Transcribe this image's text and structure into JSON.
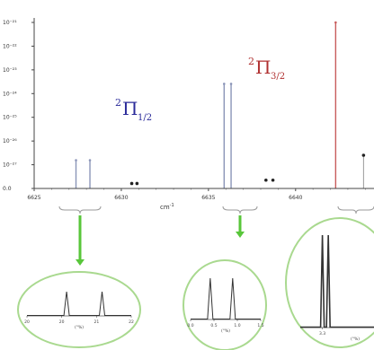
{
  "chart_data": {
    "type": "stem",
    "x_unit_label": "cm",
    "x_unit_superscript": "-1",
    "xlim": [
      6625,
      6644.5
    ],
    "x_ticks": [
      6625,
      6630,
      6635,
      6640
    ],
    "y_scale": "log",
    "y_tick_labels": [
      "10⁻²¹",
      "10⁻²²",
      "10⁻²³",
      "10⁻²⁴",
      "10⁻²⁵",
      "10⁻²⁶",
      "10⁻²⁷",
      "0.0"
    ],
    "series": [
      {
        "color": "#8b95b8",
        "points": [
          {
            "x": 6627.4,
            "y_level": 0.17
          },
          {
            "x": 6628.2,
            "y_level": 0.17
          },
          {
            "x": 6635.9,
            "y_level": 0.63
          },
          {
            "x": 6636.3,
            "y_level": 0.63
          }
        ]
      },
      {
        "color": "#c85c5c",
        "points": [
          {
            "x": 6642.3,
            "y_level": 1.0
          }
        ]
      },
      {
        "color": "#222222",
        "points": [
          {
            "x": 6630.6,
            "y_level": 0.03
          },
          {
            "x": 6630.9,
            "y_level": 0.03
          },
          {
            "x": 6638.3,
            "y_level": 0.05
          },
          {
            "x": 6638.7,
            "y_level": 0.05
          },
          {
            "x": 6643.9,
            "y_level": 0.2
          }
        ]
      }
    ],
    "annotations": [
      {
        "symbol": "Π",
        "superscript": "2",
        "subscript": "1/2",
        "color": "#2b2b9a",
        "near_x": 6632.0
      },
      {
        "symbol": "Π",
        "superscript": "2",
        "subscript": "3/2",
        "color": "#b03030",
        "near_x": 6639.0
      }
    ],
    "insets": [
      {
        "name": "inset-1",
        "tick_labels": [
          "20",
          "20",
          "21",
          "22"
        ],
        "xlabel": "(°%)",
        "peaks": [
          0.38,
          0.72
        ]
      },
      {
        "name": "inset-2",
        "tick_labels": [
          "0.0",
          "0.5",
          "1.0",
          "1.5"
        ],
        "xlabel": "(°%)",
        "peaks": [
          0.28,
          0.6
        ]
      },
      {
        "name": "inset-3",
        "tick_labels": [
          "3.3"
        ],
        "xlabel": "(°%)",
        "peaks": [
          0.3,
          0.38
        ]
      }
    ]
  },
  "colors": {
    "bracket": "#9a9a9a",
    "arrow": "#58c63a",
    "inset_ring": "#a9d98f",
    "stem_blue": "#8b95b8",
    "stem_red": "#c85c5c",
    "dot": "#222222"
  }
}
